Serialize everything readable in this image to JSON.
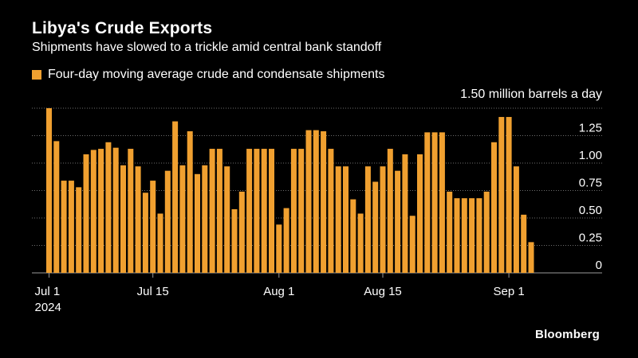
{
  "title": "Libya's Crude Exports",
  "subtitle": "Shipments have slowed to a trickle amid central bank standoff",
  "legend_label": "Four-day moving average crude and condensate shipments",
  "unit_label": "1.50 million barrels a day",
  "brand": "Bloomberg",
  "colors": {
    "bar": "#f0a030",
    "background": "#000000",
    "grid": "#6e6e6e",
    "text": "#ffffff"
  },
  "chart_data": {
    "type": "bar",
    "title": "Libya's Crude Exports",
    "subtitle": "Shipments have slowed to a trickle amid central bank standoff",
    "ylabel": "1.50 million barrels a day",
    "ylim": [
      0,
      1.5
    ],
    "y_ticks": [
      {
        "value": 0,
        "label": "0"
      },
      {
        "value": 0.25,
        "label": "0.25"
      },
      {
        "value": 0.5,
        "label": "0.50"
      },
      {
        "value": 0.75,
        "label": "0.75"
      },
      {
        "value": 1.0,
        "label": "1.00"
      },
      {
        "value": 1.25,
        "label": "1.25"
      },
      {
        "value": 1.5,
        "label": "1.50"
      }
    ],
    "x_ticks": [
      {
        "date": "2024-07-01",
        "label": "Jul 1",
        "sublabel": "2024"
      },
      {
        "date": "2024-07-15",
        "label": "Jul 15",
        "sublabel": ""
      },
      {
        "date": "2024-08-01",
        "label": "Aug 1",
        "sublabel": ""
      },
      {
        "date": "2024-08-15",
        "label": "Aug 15",
        "sublabel": ""
      },
      {
        "date": "2024-09-01",
        "label": "Sep 1",
        "sublabel": ""
      }
    ],
    "grid": true,
    "series": [
      {
        "name": "Four-day moving average crude and condensate shipments",
        "x": [
          "2024-07-01",
          "2024-07-02",
          "2024-07-03",
          "2024-07-04",
          "2024-07-05",
          "2024-07-06",
          "2024-07-07",
          "2024-07-08",
          "2024-07-09",
          "2024-07-10",
          "2024-07-11",
          "2024-07-12",
          "2024-07-13",
          "2024-07-14",
          "2024-07-15",
          "2024-07-16",
          "2024-07-17",
          "2024-07-18",
          "2024-07-19",
          "2024-07-20",
          "2024-07-21",
          "2024-07-22",
          "2024-07-23",
          "2024-07-24",
          "2024-07-25",
          "2024-07-26",
          "2024-07-27",
          "2024-07-28",
          "2024-07-29",
          "2024-07-30",
          "2024-07-31",
          "2024-08-01",
          "2024-08-02",
          "2024-08-03",
          "2024-08-04",
          "2024-08-05",
          "2024-08-06",
          "2024-08-07",
          "2024-08-08",
          "2024-08-09",
          "2024-08-10",
          "2024-08-11",
          "2024-08-12",
          "2024-08-13",
          "2024-08-14",
          "2024-08-15",
          "2024-08-16",
          "2024-08-17",
          "2024-08-18",
          "2024-08-19",
          "2024-08-20",
          "2024-08-21",
          "2024-08-22",
          "2024-08-23",
          "2024-08-24",
          "2024-08-25",
          "2024-08-26",
          "2024-08-27",
          "2024-08-28",
          "2024-08-29",
          "2024-08-30",
          "2024-08-31",
          "2024-09-01",
          "2024-09-02",
          "2024-09-03",
          "2024-09-04",
          "2024-09-05"
        ],
        "values": [
          1.5,
          1.2,
          0.84,
          0.84,
          0.78,
          1.08,
          1.12,
          1.13,
          1.19,
          1.14,
          0.98,
          1.13,
          0.97,
          0.73,
          0.84,
          0.54,
          0.93,
          1.38,
          0.98,
          1.29,
          0.9,
          0.98,
          1.13,
          1.13,
          0.97,
          0.58,
          0.74,
          1.13,
          1.13,
          1.13,
          1.13,
          0.44,
          0.59,
          1.13,
          1.13,
          1.3,
          1.3,
          1.29,
          1.13,
          0.97,
          0.97,
          0.67,
          0.54,
          0.97,
          0.83,
          0.97,
          1.13,
          0.93,
          1.08,
          0.52,
          1.08,
          1.28,
          1.28,
          1.28,
          0.74,
          0.68,
          0.68,
          0.68,
          0.68,
          0.74,
          1.19,
          1.42,
          1.42,
          0.97,
          0.53,
          0.28,
          0.0
        ]
      }
    ]
  }
}
